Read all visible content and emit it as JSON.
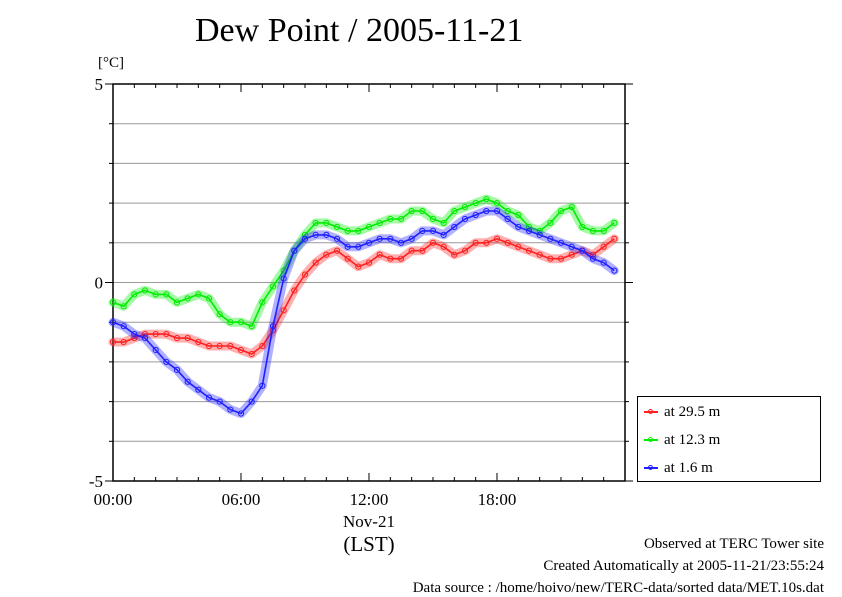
{
  "chart_data": {
    "type": "line",
    "title": "Dew Point / 2005-11-21",
    "ylabel": "[°C]",
    "ylim": [
      -5,
      5
    ],
    "xlim": [
      0,
      24
    ],
    "y_ticks": [
      "5",
      "0",
      "-5"
    ],
    "y_tick_values": [
      5,
      0,
      -5
    ],
    "x_ticks": [
      "00:00",
      "06:00",
      "12:00",
      "18:00"
    ],
    "x_tick_values": [
      0,
      6,
      12,
      18
    ],
    "x_date_label": "Nov-21",
    "x_unit_label": "(LST)",
    "grid": true,
    "legend_position": "bottom-right-outside",
    "x": [
      0,
      0.5,
      1,
      1.5,
      2,
      2.5,
      3,
      3.5,
      4,
      4.5,
      5,
      5.5,
      6,
      6.5,
      7,
      7.5,
      8,
      8.5,
      9,
      9.5,
      10,
      10.5,
      11,
      11.5,
      12,
      12.5,
      13,
      13.5,
      14,
      14.5,
      15,
      15.5,
      16,
      16.5,
      17,
      17.5,
      18,
      18.5,
      19,
      19.5,
      20,
      20.5,
      21,
      21.5,
      22,
      22.5,
      23,
      23.5
    ],
    "series": [
      {
        "name": "at 29.5 m",
        "color": "#ff2020",
        "values": [
          -1.5,
          -1.5,
          -1.4,
          -1.3,
          -1.3,
          -1.3,
          -1.4,
          -1.4,
          -1.5,
          -1.6,
          -1.6,
          -1.6,
          -1.7,
          -1.8,
          -1.6,
          -1.2,
          -0.7,
          -0.2,
          0.2,
          0.5,
          0.7,
          0.8,
          0.6,
          0.4,
          0.5,
          0.7,
          0.6,
          0.6,
          0.8,
          0.8,
          1.0,
          0.9,
          0.7,
          0.8,
          1.0,
          1.0,
          1.1,
          1.0,
          0.9,
          0.8,
          0.7,
          0.6,
          0.6,
          0.7,
          0.8,
          0.7,
          0.9,
          1.1
        ]
      },
      {
        "name": "at 12.3 m",
        "color": "#00ee00",
        "values": [
          -0.5,
          -0.6,
          -0.3,
          -0.2,
          -0.3,
          -0.3,
          -0.5,
          -0.4,
          -0.3,
          -0.4,
          -0.8,
          -1.0,
          -1.0,
          -1.1,
          -0.5,
          -0.1,
          0.3,
          0.8,
          1.2,
          1.5,
          1.5,
          1.4,
          1.3,
          1.3,
          1.4,
          1.5,
          1.6,
          1.6,
          1.8,
          1.8,
          1.6,
          1.5,
          1.8,
          1.9,
          2.0,
          2.1,
          2.0,
          1.8,
          1.7,
          1.4,
          1.3,
          1.5,
          1.8,
          1.9,
          1.4,
          1.3,
          1.3,
          1.5
        ]
      },
      {
        "name": "at 1.6 m",
        "color": "#2020ff",
        "values": [
          -1.0,
          -1.1,
          -1.3,
          -1.4,
          -1.7,
          -2.0,
          -2.2,
          -2.5,
          -2.7,
          -2.9,
          -3.0,
          -3.2,
          -3.3,
          -3.0,
          -2.6,
          -1.1,
          0.1,
          0.8,
          1.1,
          1.2,
          1.2,
          1.1,
          0.9,
          0.9,
          1.0,
          1.1,
          1.1,
          1.0,
          1.1,
          1.3,
          1.3,
          1.2,
          1.4,
          1.6,
          1.7,
          1.8,
          1.8,
          1.6,
          1.4,
          1.3,
          1.2,
          1.1,
          1.0,
          0.9,
          0.8,
          0.6,
          0.5,
          0.3
        ]
      }
    ]
  },
  "footer": {
    "line1": "Observed at TERC Tower site",
    "line2": "Created Automatically at 2005-11-21/23:55:24",
    "line3": "Data source : /home/hoivo/new/TERC-data/sorted  data/MET.10s.dat"
  }
}
